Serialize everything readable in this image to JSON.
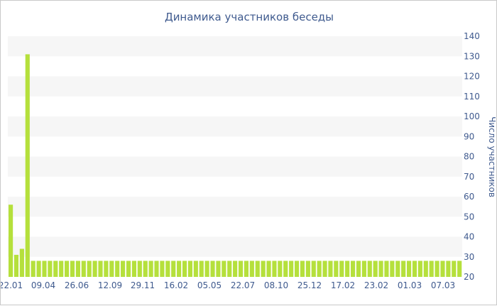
{
  "chart_data": {
    "type": "bar",
    "title": "Динамика участников беседы",
    "xlabel": "",
    "ylabel": "Число участников",
    "ylim": [
      20,
      140
    ],
    "yticks": [
      20,
      30,
      40,
      50,
      60,
      70,
      80,
      90,
      100,
      110,
      120,
      130,
      140
    ],
    "xticks": [
      "22.01",
      "09.04",
      "26.06",
      "12.09",
      "29.11",
      "16.02",
      "05.05",
      "22.07",
      "08.10",
      "25.12",
      "17.02",
      "23.02",
      "01.03",
      "07.03"
    ],
    "grid": "alternating horizontal bands",
    "y_axis_side": "right",
    "colors": {
      "bar": "#b5e03c",
      "band": "#f6f6f6",
      "text": "#3f5a8e"
    },
    "series": [
      {
        "values": [
          56,
          31,
          34,
          131,
          28,
          28,
          28,
          28,
          28,
          28,
          28,
          28,
          28,
          28,
          28,
          28,
          28,
          28,
          28,
          28,
          28,
          28,
          28,
          28,
          28,
          28,
          28,
          28,
          28,
          28,
          28,
          28,
          28,
          28,
          28,
          28,
          28,
          28,
          28,
          28,
          28,
          28,
          28,
          28,
          28,
          28,
          28,
          28,
          28,
          28,
          28,
          28,
          28,
          28,
          28,
          28,
          28,
          28,
          28,
          28,
          28,
          28,
          28,
          28,
          28,
          28,
          28,
          28,
          28,
          28,
          28,
          28,
          28,
          28,
          28,
          28,
          28,
          28,
          28,
          28,
          28
        ]
      }
    ]
  }
}
